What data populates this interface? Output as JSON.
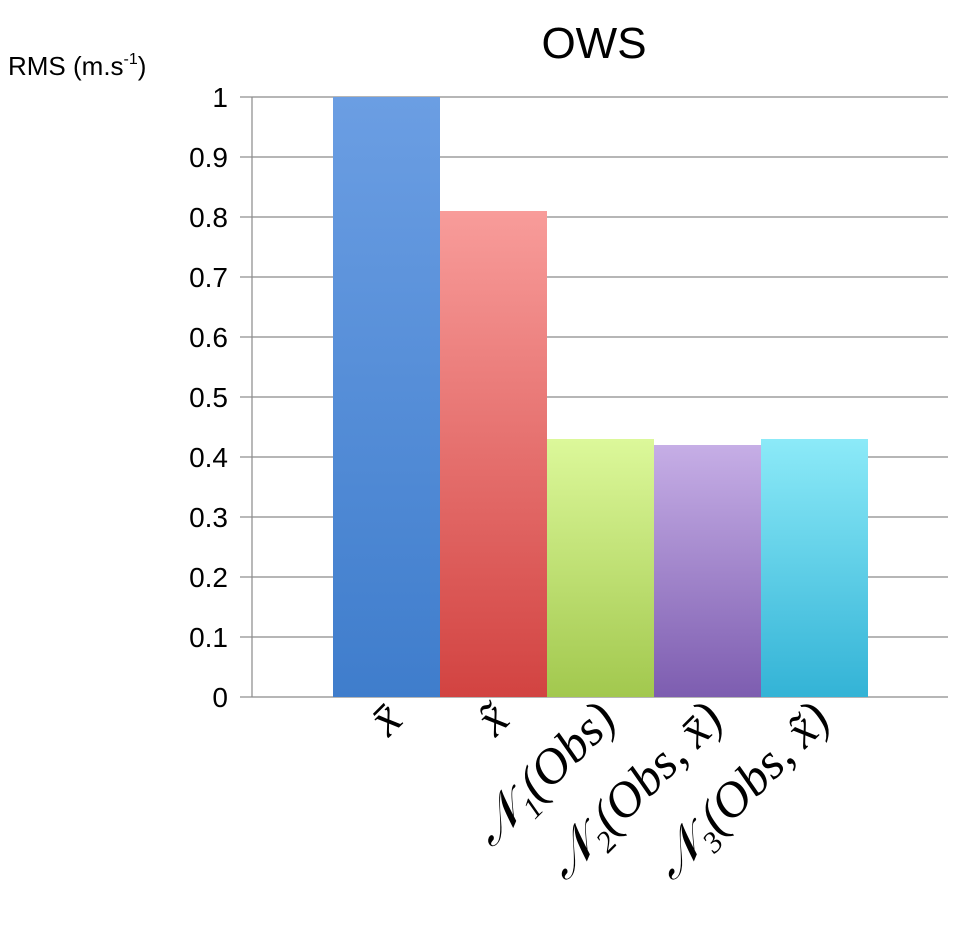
{
  "chart_data": {
    "type": "bar",
    "title": "OWS",
    "ylabel": "RMS (m.s",
    "ylabel_sup": "-1",
    "ylabel_close": ")",
    "xlabel": "",
    "ylim": [
      0,
      1
    ],
    "yticks": [
      "0",
      "0.1",
      "0.2",
      "0.3",
      "0.4",
      "0.5",
      "0.6",
      "0.7",
      "0.8",
      "0.9",
      "1"
    ],
    "grid": true,
    "categories": [
      "x̄",
      "x̃",
      "𝒩₁(Obs)",
      "𝒩₂(Obs, x̄)",
      "𝒩₃(Obs, x̃)"
    ],
    "values": [
      1.0,
      0.81,
      0.43,
      0.42,
      0.43
    ],
    "colors": [
      {
        "top": "#6b9ee3",
        "bottom": "#3f7dcc"
      },
      {
        "top": "#f89c9a",
        "bottom": "#d24341"
      },
      {
        "top": "#dcf89a",
        "bottom": "#a2c84e"
      },
      {
        "top": "#c6aee6",
        "bottom": "#7d5db0"
      },
      {
        "top": "#8ceaf8",
        "bottom": "#33b3d6"
      }
    ]
  }
}
